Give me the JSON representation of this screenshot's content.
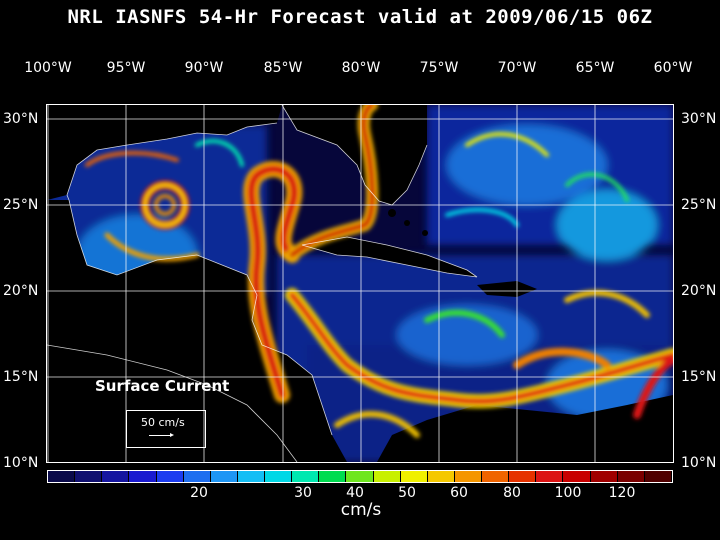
{
  "title": "NRL IASNFS  54-Hr Forecast valid at 2009/06/15 06Z",
  "longitude_labels": [
    "100°W",
    "95°W",
    "90°W",
    "85°W",
    "80°W",
    "75°W",
    "70°W",
    "65°W",
    "60°W"
  ],
  "latitude_labels": [
    "30°N",
    "25°N",
    "20°N",
    "15°N",
    "10°N"
  ],
  "map": {
    "label": "Surface Current",
    "scale_label": "50 cm/s",
    "field": "surface current speed"
  },
  "colorbar": {
    "tick_labels": [
      "20",
      "30",
      "40",
      "50",
      "60",
      "80",
      "100",
      "120"
    ],
    "units": "cm/s",
    "colors": [
      "#0a0a4a",
      "#101070",
      "#1515a0",
      "#1a1ad0",
      "#1c3cf0",
      "#1e6ef0",
      "#1e96f5",
      "#14bef5",
      "#00d8e6",
      "#00e8b0",
      "#00dc50",
      "#6ee61e",
      "#c8f000",
      "#f0f000",
      "#f5c800",
      "#f59600",
      "#f06400",
      "#e63200",
      "#dc1414",
      "#c80000",
      "#a00000",
      "#7a0000",
      "#500000"
    ]
  }
}
